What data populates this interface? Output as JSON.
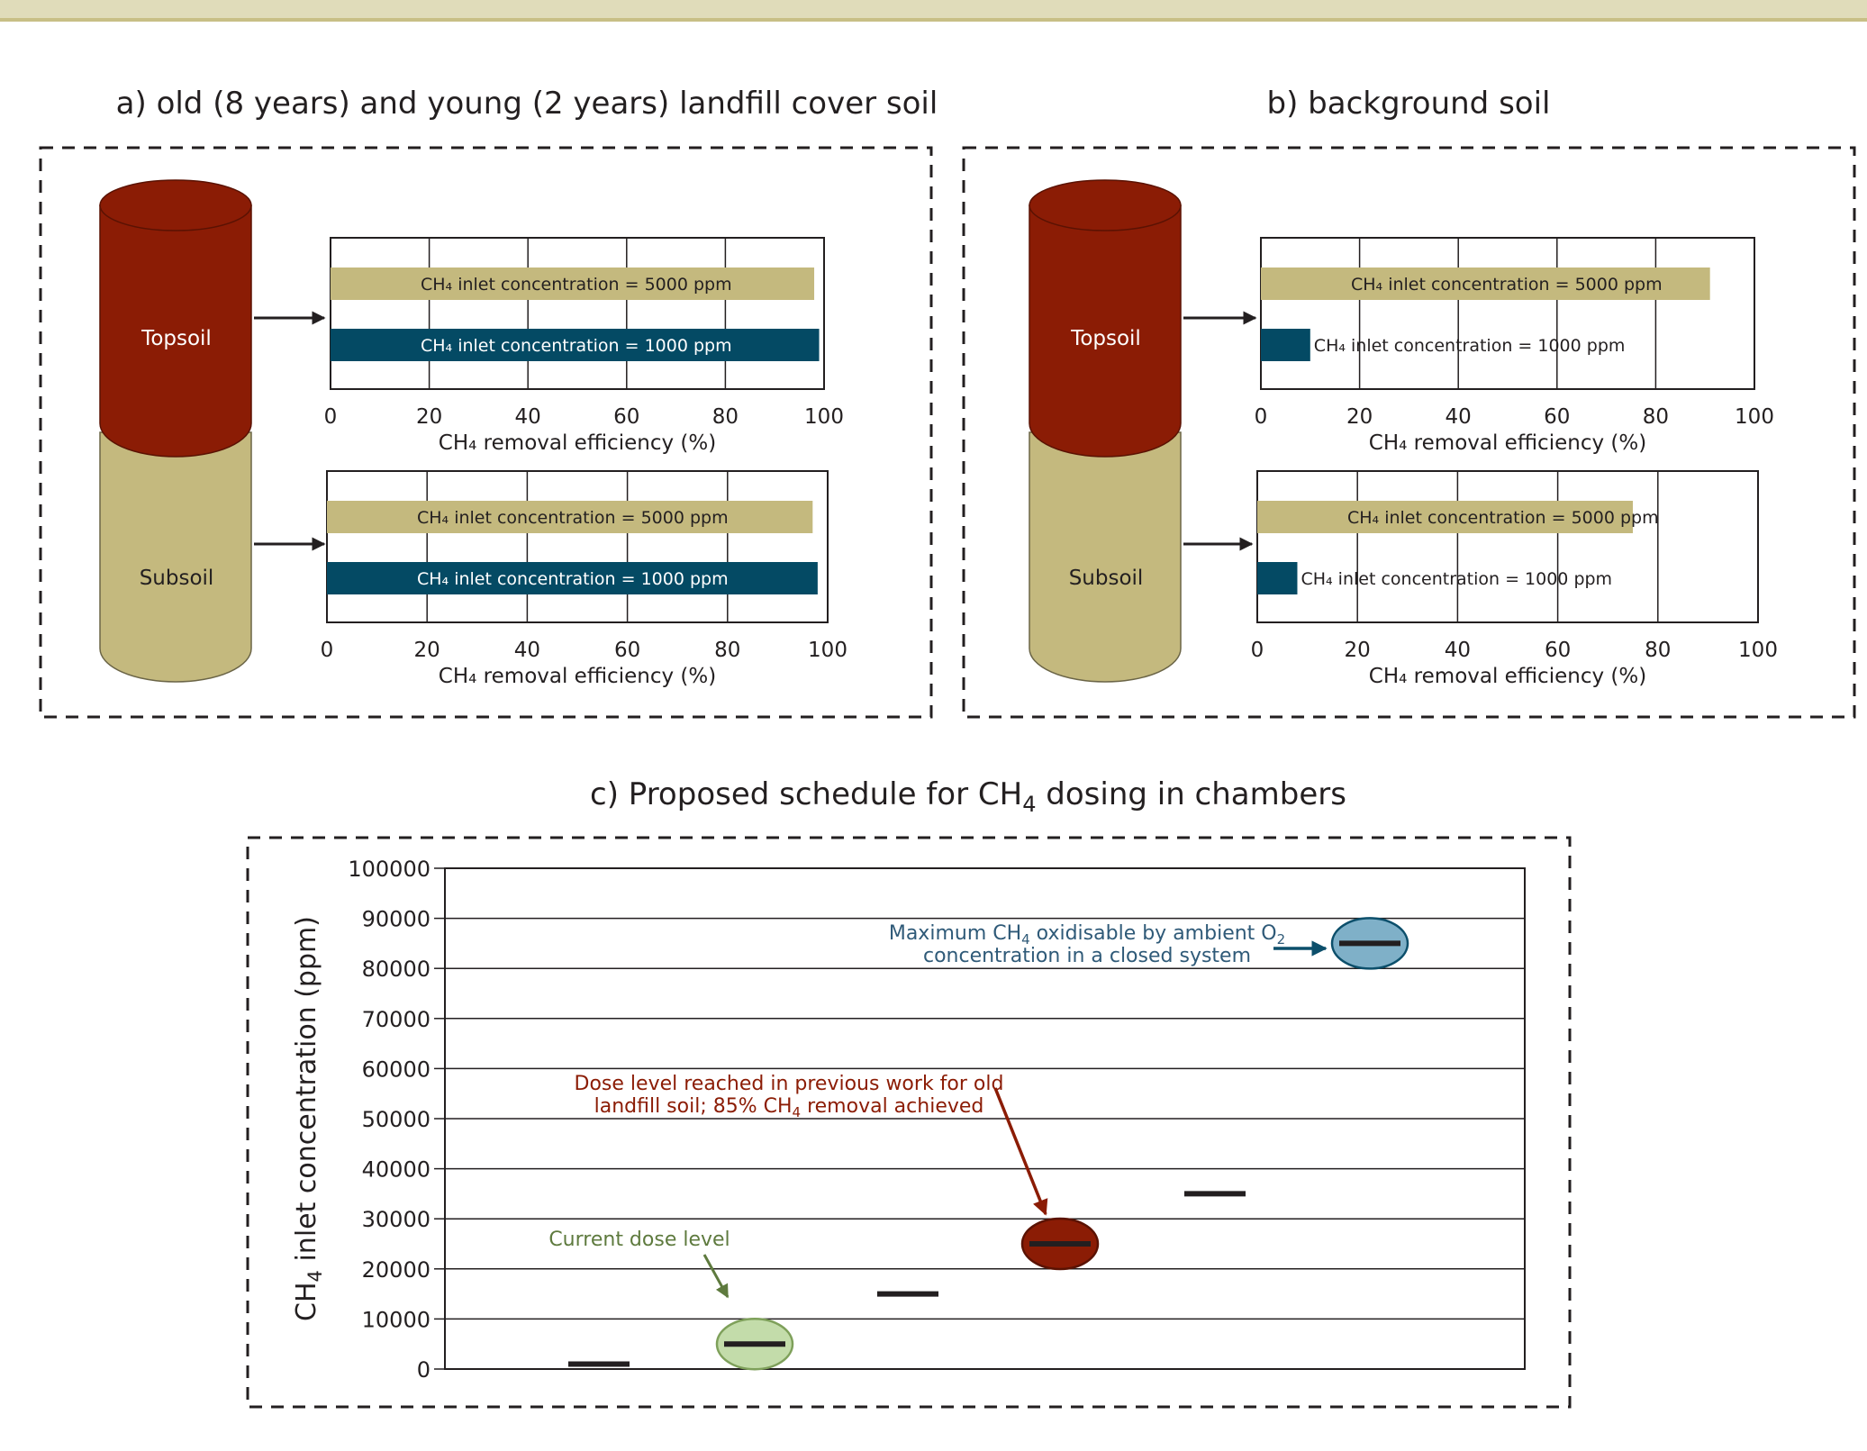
{
  "panels": {
    "a": {
      "title": "a) old (8 years) and young (2 years)  landfill cover soil"
    },
    "b": {
      "title": "b) background soil"
    },
    "c": {
      "title_prefix": "c) Proposed schedule for CH",
      "title_sub": "4",
      "title_suffix": " dosing in chambers"
    }
  },
  "soil_column": {
    "topsoil_label": "Topsoil",
    "subsoil_label": "Subsoil"
  },
  "colors": {
    "topsoil": "#8b1c05",
    "subsoil": "#c4b97e",
    "bar_5000": "#c4b97e",
    "bar_1000": "#044a64",
    "dose_current": "#c3dcaa",
    "dose_previous": "#8b1c05",
    "dose_maximum": "#7fb0c8",
    "annotation_green": "#5e7a3e",
    "annotation_red": "#8b1c05",
    "annotation_blue": "#2f5a78"
  },
  "chart_data": [
    {
      "id": "a-topsoil",
      "type": "bar",
      "orientation": "horizontal",
      "categories": [
        "CH₄ inlet concentration = 5000 ppm",
        "CH₄ inlet concentration = 1000 ppm"
      ],
      "values": [
        98,
        99
      ],
      "xlabel": "CH₄ removal efficiency (%)",
      "xlim": [
        0,
        100
      ],
      "xticks": [
        "0",
        "20",
        "40",
        "60",
        "80",
        "100"
      ],
      "grid": true
    },
    {
      "id": "a-subsoil",
      "type": "bar",
      "orientation": "horizontal",
      "categories": [
        "CH₄ inlet concentration = 5000 ppm",
        "CH₄ inlet concentration = 1000 ppm"
      ],
      "values": [
        97,
        98
      ],
      "xlabel": "CH₄ removal efficiency (%)",
      "xlim": [
        0,
        100
      ],
      "xticks": [
        "0",
        "20",
        "40",
        "60",
        "80",
        "100"
      ],
      "grid": true
    },
    {
      "id": "b-topsoil",
      "type": "bar",
      "orientation": "horizontal",
      "categories": [
        "CH₄ inlet concentration = 5000 ppm",
        "CH₄ inlet concentration = 1000 ppm"
      ],
      "values": [
        91,
        10
      ],
      "xlabel": "CH₄ removal efficiency (%)",
      "xlim": [
        0,
        100
      ],
      "xticks": [
        "0",
        "20",
        "40",
        "60",
        "80",
        "100"
      ],
      "grid": true
    },
    {
      "id": "b-subsoil",
      "type": "bar",
      "orientation": "horizontal",
      "categories": [
        "CH₄ inlet concentration = 5000 ppm",
        "CH₄ inlet concentration = 1000 ppm"
      ],
      "values": [
        75,
        8
      ],
      "xlabel": "CH₄ removal efficiency (%)",
      "xlim": [
        0,
        100
      ],
      "xticks": [
        "0",
        "20",
        "40",
        "60",
        "80",
        "100"
      ],
      "grid": true
    },
    {
      "id": "c-schedule",
      "type": "scatter",
      "title": "c) Proposed schedule for CH₄ dosing in chambers",
      "ylabel": "CH₄ inlet concentration (ppm)",
      "ylim": [
        0,
        100000
      ],
      "yticks": [
        "0",
        "10000",
        "20000",
        "30000",
        "40000",
        "50000",
        "60000",
        "70000",
        "80000",
        "90000",
        "100000"
      ],
      "grid": true,
      "x": [
        1,
        2,
        3,
        4,
        5,
        6
      ],
      "values": [
        1000,
        5000,
        15000,
        25000,
        35000,
        85000
      ],
      "highlights": [
        {
          "index": 1,
          "color": "#c3dcaa"
        },
        {
          "index": 3,
          "color": "#8b1c05"
        },
        {
          "index": 5,
          "color": "#7fb0c8"
        }
      ],
      "annotations": {
        "current": "Current dose level",
        "previous_line1": "Dose level reached in previous work for old",
        "previous_line2_pre": "landfill soil; 85% CH",
        "previous_line2_sub": "4",
        "previous_line2_post": " removal achieved",
        "maximum_line1_pre": "Maximum CH",
        "maximum_line1_sub": "4",
        "maximum_line1_mid": " oxidisable by ambient O",
        "maximum_line1_sub2": "2",
        "maximum_line2": "concentration in a closed system"
      }
    }
  ]
}
